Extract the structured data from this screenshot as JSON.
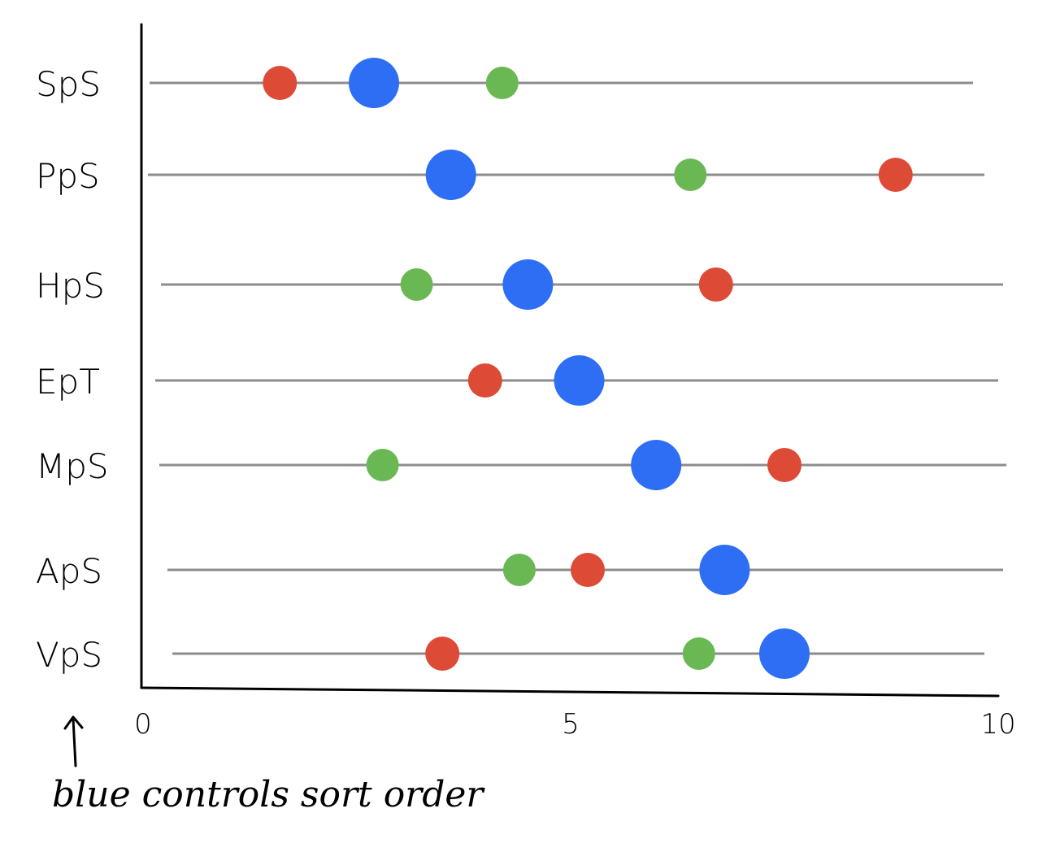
{
  "chart_data": {
    "type": "scatter",
    "categories": [
      "SpS",
      "PpS",
      "HpS",
      "EpT",
      "MpS",
      "ApS",
      "VpS"
    ],
    "xlim": [
      0,
      10
    ],
    "xticks": [
      "0",
      "5",
      "10"
    ],
    "series": [
      {
        "color": "#dd4a36",
        "values": [
          1.6,
          8.8,
          6.7,
          4.0,
          7.5,
          5.2,
          3.5
        ]
      },
      {
        "color": "#2e6ef5",
        "values": [
          2.7,
          3.6,
          4.5,
          5.1,
          6.0,
          6.8,
          7.5
        ]
      },
      {
        "color": "#6ab854",
        "values": [
          4.2,
          6.4,
          3.2,
          null,
          2.8,
          4.4,
          6.5
        ]
      }
    ],
    "annotation": "blue controls sort order",
    "grid": false,
    "legend": "none"
  }
}
